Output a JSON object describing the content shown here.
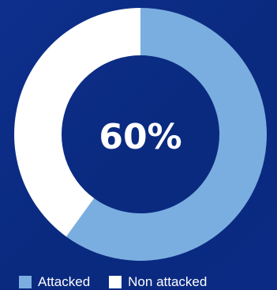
{
  "chart_data": {
    "type": "pie",
    "donut": true,
    "center_label": "60%",
    "slices": [
      {
        "name": "Attacked",
        "value": 60,
        "color": "#7aaee0"
      },
      {
        "name": "Non attacked",
        "value": 40,
        "color": "#ffffff"
      }
    ],
    "legend": {
      "placement": "bottom-left",
      "items": [
        {
          "label": "Attacked",
          "color": "#7aaee0"
        },
        {
          "label": "Non attacked",
          "color": "#ffffff"
        }
      ]
    }
  }
}
